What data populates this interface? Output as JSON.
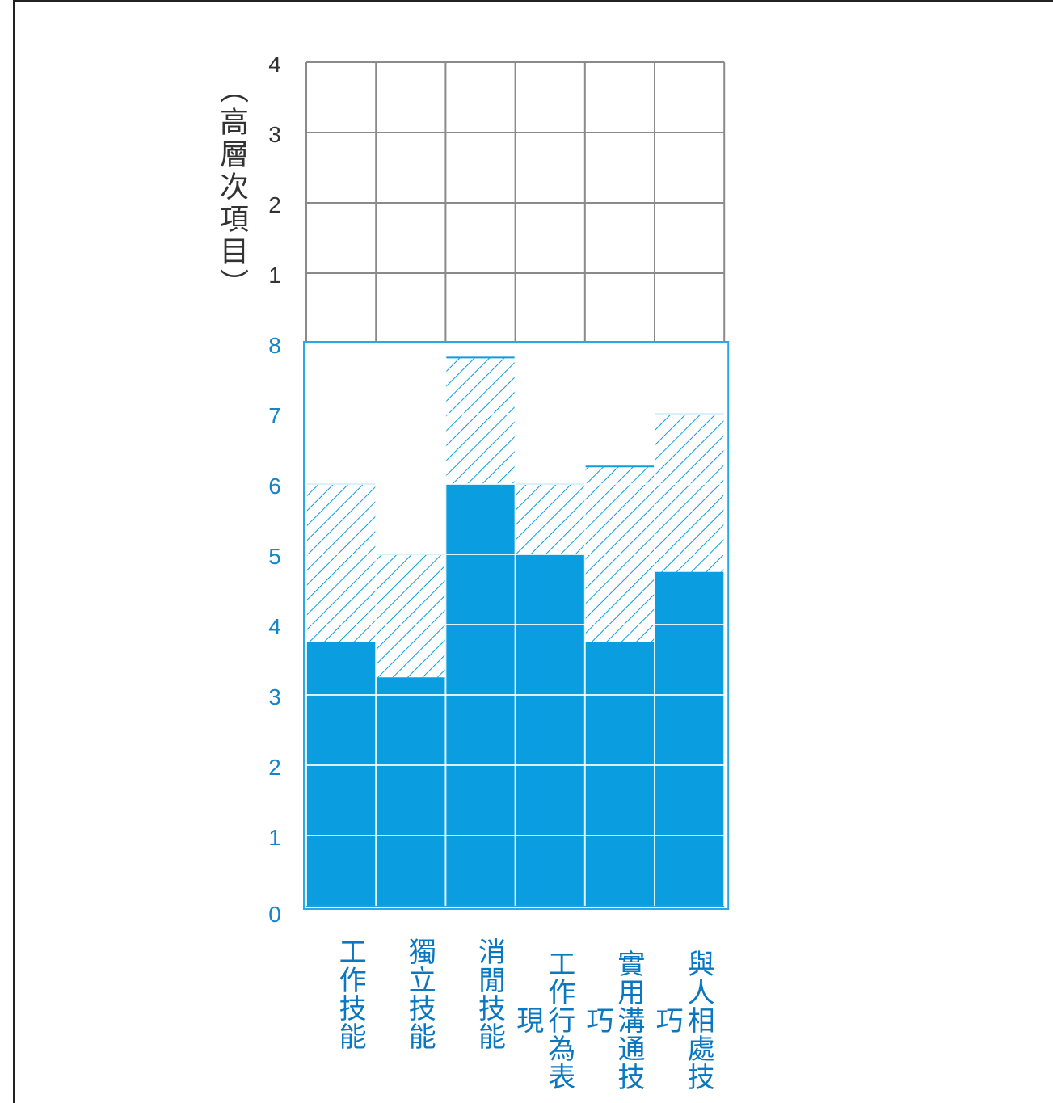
{
  "chart_data": {
    "type": "bar",
    "categories": [
      "工作技能",
      "獨立技能",
      "消閒技能",
      "工作行為表現",
      "實用溝通技巧",
      "與人相處技巧"
    ],
    "series": [
      {
        "values": [
          3.75,
          3.25,
          6.0,
          5.0,
          3.75,
          4.75
        ]
      },
      {
        "values": [
          6.0,
          5.0,
          7.8,
          6.0,
          6.25,
          7.0
        ]
      }
    ],
    "lower_axis": {
      "ticks": [
        "0",
        "1",
        "2",
        "3",
        "4",
        "5",
        "6",
        "7",
        "8"
      ],
      "range": [
        0,
        8
      ]
    },
    "upper_axis": {
      "ticks": [
        "1",
        "2",
        "3",
        "4"
      ],
      "range": [
        0,
        4
      ],
      "label": "（高層次項目）"
    },
    "colors": {
      "fill": "#0a9de0",
      "accent": "#2aa8e6",
      "grid_upper": "#8a8a8a",
      "tick_lower": "#1584c8",
      "tick_upper": "#333333"
    },
    "grid": true
  }
}
